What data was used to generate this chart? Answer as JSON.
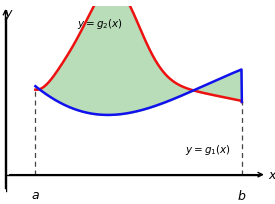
{
  "xlim": [
    0.0,
    10.5
  ],
  "ylim": [
    -1.2,
    8.0
  ],
  "x_a": 1.2,
  "x_b": 9.5,
  "bg_color": "#ffffff",
  "fill_color": "#b8ddb8",
  "fill_alpha": 1.0,
  "g2_color": "#ee1111",
  "g1_color": "#1111ee",
  "g2_linewidth": 1.8,
  "g1_linewidth": 1.8,
  "dashed_color": "#444444",
  "label_a": "a",
  "label_b": "b",
  "label_x": "x",
  "label_y": "y"
}
